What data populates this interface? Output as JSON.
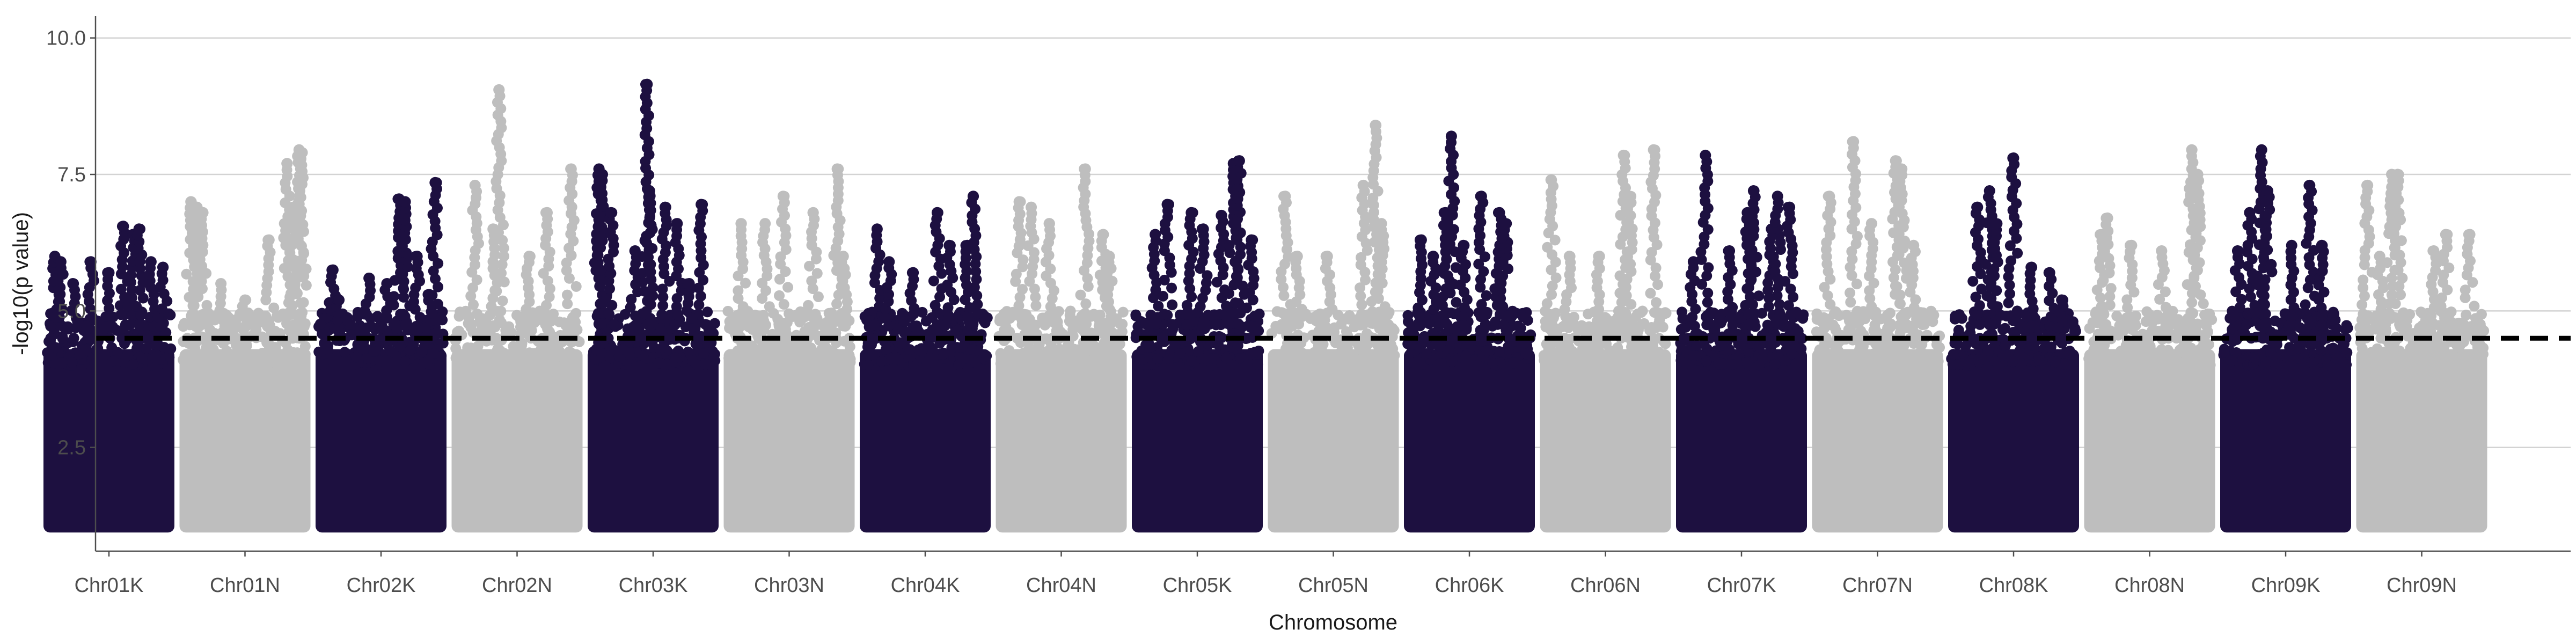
{
  "chart_data": {
    "type": "scatter",
    "subtype": "manhattan",
    "title": "",
    "xlabel": "Chromosome",
    "ylabel": "-log10(p value)",
    "ylim": [
      0.6,
      10.4
    ],
    "yticks": [
      2.5,
      5.0,
      7.5,
      10.0
    ],
    "ytick_labels": [
      "2.5",
      "5.0",
      "7.5",
      "10.0"
    ],
    "grid": "horizontal major",
    "legend": "none",
    "threshold": {
      "value": 4.5,
      "style": "dashed",
      "color": "#000000"
    },
    "colors": {
      "dark": "#1d1040",
      "light": "#bebebe"
    },
    "body_range": [
      1.0,
      4.5
    ],
    "categories": [
      "Chr01K",
      "Chr01N",
      "Chr02K",
      "Chr02N",
      "Chr03K",
      "Chr03N",
      "Chr04K",
      "Chr04N",
      "Chr05K",
      "Chr05N",
      "Chr06K",
      "Chr06N",
      "Chr07K",
      "Chr07N",
      "Chr08K",
      "Chr08N",
      "Chr09K",
      "Chr09N"
    ],
    "series": [
      {
        "category": "Chr01K",
        "color": "dark",
        "peaks": [
          [
            0.05,
            6.0
          ],
          [
            0.1,
            5.9
          ],
          [
            0.2,
            5.5
          ],
          [
            0.35,
            5.9
          ],
          [
            0.5,
            5.7
          ],
          [
            0.62,
            6.55
          ],
          [
            0.7,
            6.4
          ],
          [
            0.75,
            6.5
          ],
          [
            0.85,
            5.9
          ],
          [
            0.95,
            5.8
          ]
        ]
      },
      {
        "category": "Chr01N",
        "color": "light",
        "peaks": [
          [
            0.05,
            7.0
          ],
          [
            0.1,
            6.9
          ],
          [
            0.15,
            6.8
          ],
          [
            0.3,
            5.5
          ],
          [
            0.5,
            5.2
          ],
          [
            0.7,
            6.3
          ],
          [
            0.85,
            7.7
          ],
          [
            0.95,
            7.95
          ],
          [
            0.97,
            7.9
          ],
          [
            0.9,
            6.9
          ]
        ]
      },
      {
        "category": "Chr02K",
        "color": "dark",
        "peaks": [
          [
            0.1,
            5.75
          ],
          [
            0.15,
            5.2
          ],
          [
            0.4,
            5.6
          ],
          [
            0.55,
            5.5
          ],
          [
            0.65,
            7.05
          ],
          [
            0.7,
            7.0
          ],
          [
            0.8,
            6.0
          ],
          [
            0.95,
            7.35
          ],
          [
            0.9,
            5.3
          ]
        ]
      },
      {
        "category": "Chr02N",
        "color": "light",
        "peaks": [
          [
            0.15,
            7.3
          ],
          [
            0.3,
            6.5
          ],
          [
            0.35,
            9.05
          ],
          [
            0.6,
            6.0
          ],
          [
            0.75,
            6.8
          ],
          [
            0.95,
            7.6
          ]
        ]
      },
      {
        "category": "Chr03K",
        "color": "dark",
        "peaks": [
          [
            0.05,
            7.6
          ],
          [
            0.07,
            7.5
          ],
          [
            0.15,
            6.8
          ],
          [
            0.35,
            6.1
          ],
          [
            0.45,
            9.15
          ],
          [
            0.47,
            7.2
          ],
          [
            0.6,
            6.9
          ],
          [
            0.7,
            6.6
          ],
          [
            0.9,
            6.95
          ],
          [
            0.8,
            5.5
          ]
        ]
      },
      {
        "category": "Chr03N",
        "color": "light",
        "peaks": [
          [
            0.1,
            6.6
          ],
          [
            0.3,
            6.6
          ],
          [
            0.45,
            7.1
          ],
          [
            0.7,
            6.8
          ],
          [
            0.9,
            7.6
          ],
          [
            0.95,
            6.0
          ]
        ]
      },
      {
        "category": "Chr04K",
        "color": "dark",
        "peaks": [
          [
            0.1,
            6.5
          ],
          [
            0.2,
            5.9
          ],
          [
            0.4,
            5.7
          ],
          [
            0.6,
            6.8
          ],
          [
            0.7,
            6.2
          ],
          [
            0.9,
            7.1
          ],
          [
            0.85,
            6.2
          ]
        ]
      },
      {
        "category": "Chr04N",
        "color": "light",
        "peaks": [
          [
            0.15,
            7.0
          ],
          [
            0.25,
            6.9
          ],
          [
            0.4,
            6.6
          ],
          [
            0.7,
            7.6
          ],
          [
            0.85,
            6.4
          ],
          [
            0.9,
            6.0
          ]
        ]
      },
      {
        "category": "Chr05K",
        "color": "dark",
        "peaks": [
          [
            0.15,
            6.4
          ],
          [
            0.25,
            6.95
          ],
          [
            0.45,
            6.8
          ],
          [
            0.55,
            6.5
          ],
          [
            0.7,
            6.75
          ],
          [
            0.8,
            7.7
          ],
          [
            0.85,
            7.75
          ],
          [
            0.95,
            6.3
          ]
        ]
      },
      {
        "category": "Chr05N",
        "color": "light",
        "peaks": [
          [
            0.1,
            7.1
          ],
          [
            0.2,
            6.0
          ],
          [
            0.45,
            6.0
          ],
          [
            0.75,
            7.3
          ],
          [
            0.85,
            8.4
          ],
          [
            0.9,
            6.6
          ]
        ]
      },
      {
        "category": "Chr06K",
        "color": "dark",
        "peaks": [
          [
            0.1,
            6.3
          ],
          [
            0.2,
            6.0
          ],
          [
            0.3,
            6.8
          ],
          [
            0.35,
            8.2
          ],
          [
            0.45,
            6.2
          ],
          [
            0.6,
            7.1
          ],
          [
            0.75,
            6.8
          ],
          [
            0.8,
            6.6
          ]
        ]
      },
      {
        "category": "Chr06N",
        "color": "light",
        "peaks": [
          [
            0.05,
            7.4
          ],
          [
            0.2,
            6.0
          ],
          [
            0.45,
            6.0
          ],
          [
            0.65,
            7.85
          ],
          [
            0.7,
            7.1
          ],
          [
            0.9,
            7.95
          ]
        ]
      },
      {
        "category": "Chr07K",
        "color": "dark",
        "peaks": [
          [
            0.1,
            5.9
          ],
          [
            0.2,
            7.85
          ],
          [
            0.4,
            6.1
          ],
          [
            0.55,
            6.8
          ],
          [
            0.6,
            7.2
          ],
          [
            0.75,
            6.5
          ],
          [
            0.8,
            7.1
          ],
          [
            0.9,
            6.9
          ]
        ]
      },
      {
        "category": "Chr07N",
        "color": "light",
        "peaks": [
          [
            0.1,
            7.1
          ],
          [
            0.3,
            8.1
          ],
          [
            0.45,
            6.6
          ],
          [
            0.65,
            7.75
          ],
          [
            0.7,
            7.6
          ],
          [
            0.8,
            6.2
          ]
        ]
      },
      {
        "category": "Chr08K",
        "color": "dark",
        "peaks": [
          [
            0.2,
            6.9
          ],
          [
            0.3,
            7.2
          ],
          [
            0.35,
            6.6
          ],
          [
            0.5,
            7.8
          ],
          [
            0.65,
            5.8
          ],
          [
            0.8,
            5.7
          ],
          [
            0.9,
            5.2
          ]
        ]
      },
      {
        "category": "Chr08N",
        "color": "light",
        "peaks": [
          [
            0.1,
            6.4
          ],
          [
            0.15,
            6.7
          ],
          [
            0.35,
            6.2
          ],
          [
            0.6,
            6.1
          ],
          [
            0.85,
            7.95
          ],
          [
            0.9,
            7.5
          ]
        ]
      },
      {
        "category": "Chr09K",
        "color": "dark",
        "peaks": [
          [
            0.1,
            6.1
          ],
          [
            0.2,
            6.8
          ],
          [
            0.3,
            7.95
          ],
          [
            0.35,
            7.2
          ],
          [
            0.55,
            6.2
          ],
          [
            0.7,
            7.3
          ],
          [
            0.8,
            6.2
          ]
        ]
      },
      {
        "category": "Chr09N",
        "color": "light",
        "peaks": [
          [
            0.05,
            7.3
          ],
          [
            0.15,
            6.0
          ],
          [
            0.25,
            7.5
          ],
          [
            0.3,
            7.5
          ],
          [
            0.6,
            6.1
          ],
          [
            0.7,
            6.4
          ],
          [
            0.9,
            6.4
          ]
        ]
      }
    ]
  }
}
